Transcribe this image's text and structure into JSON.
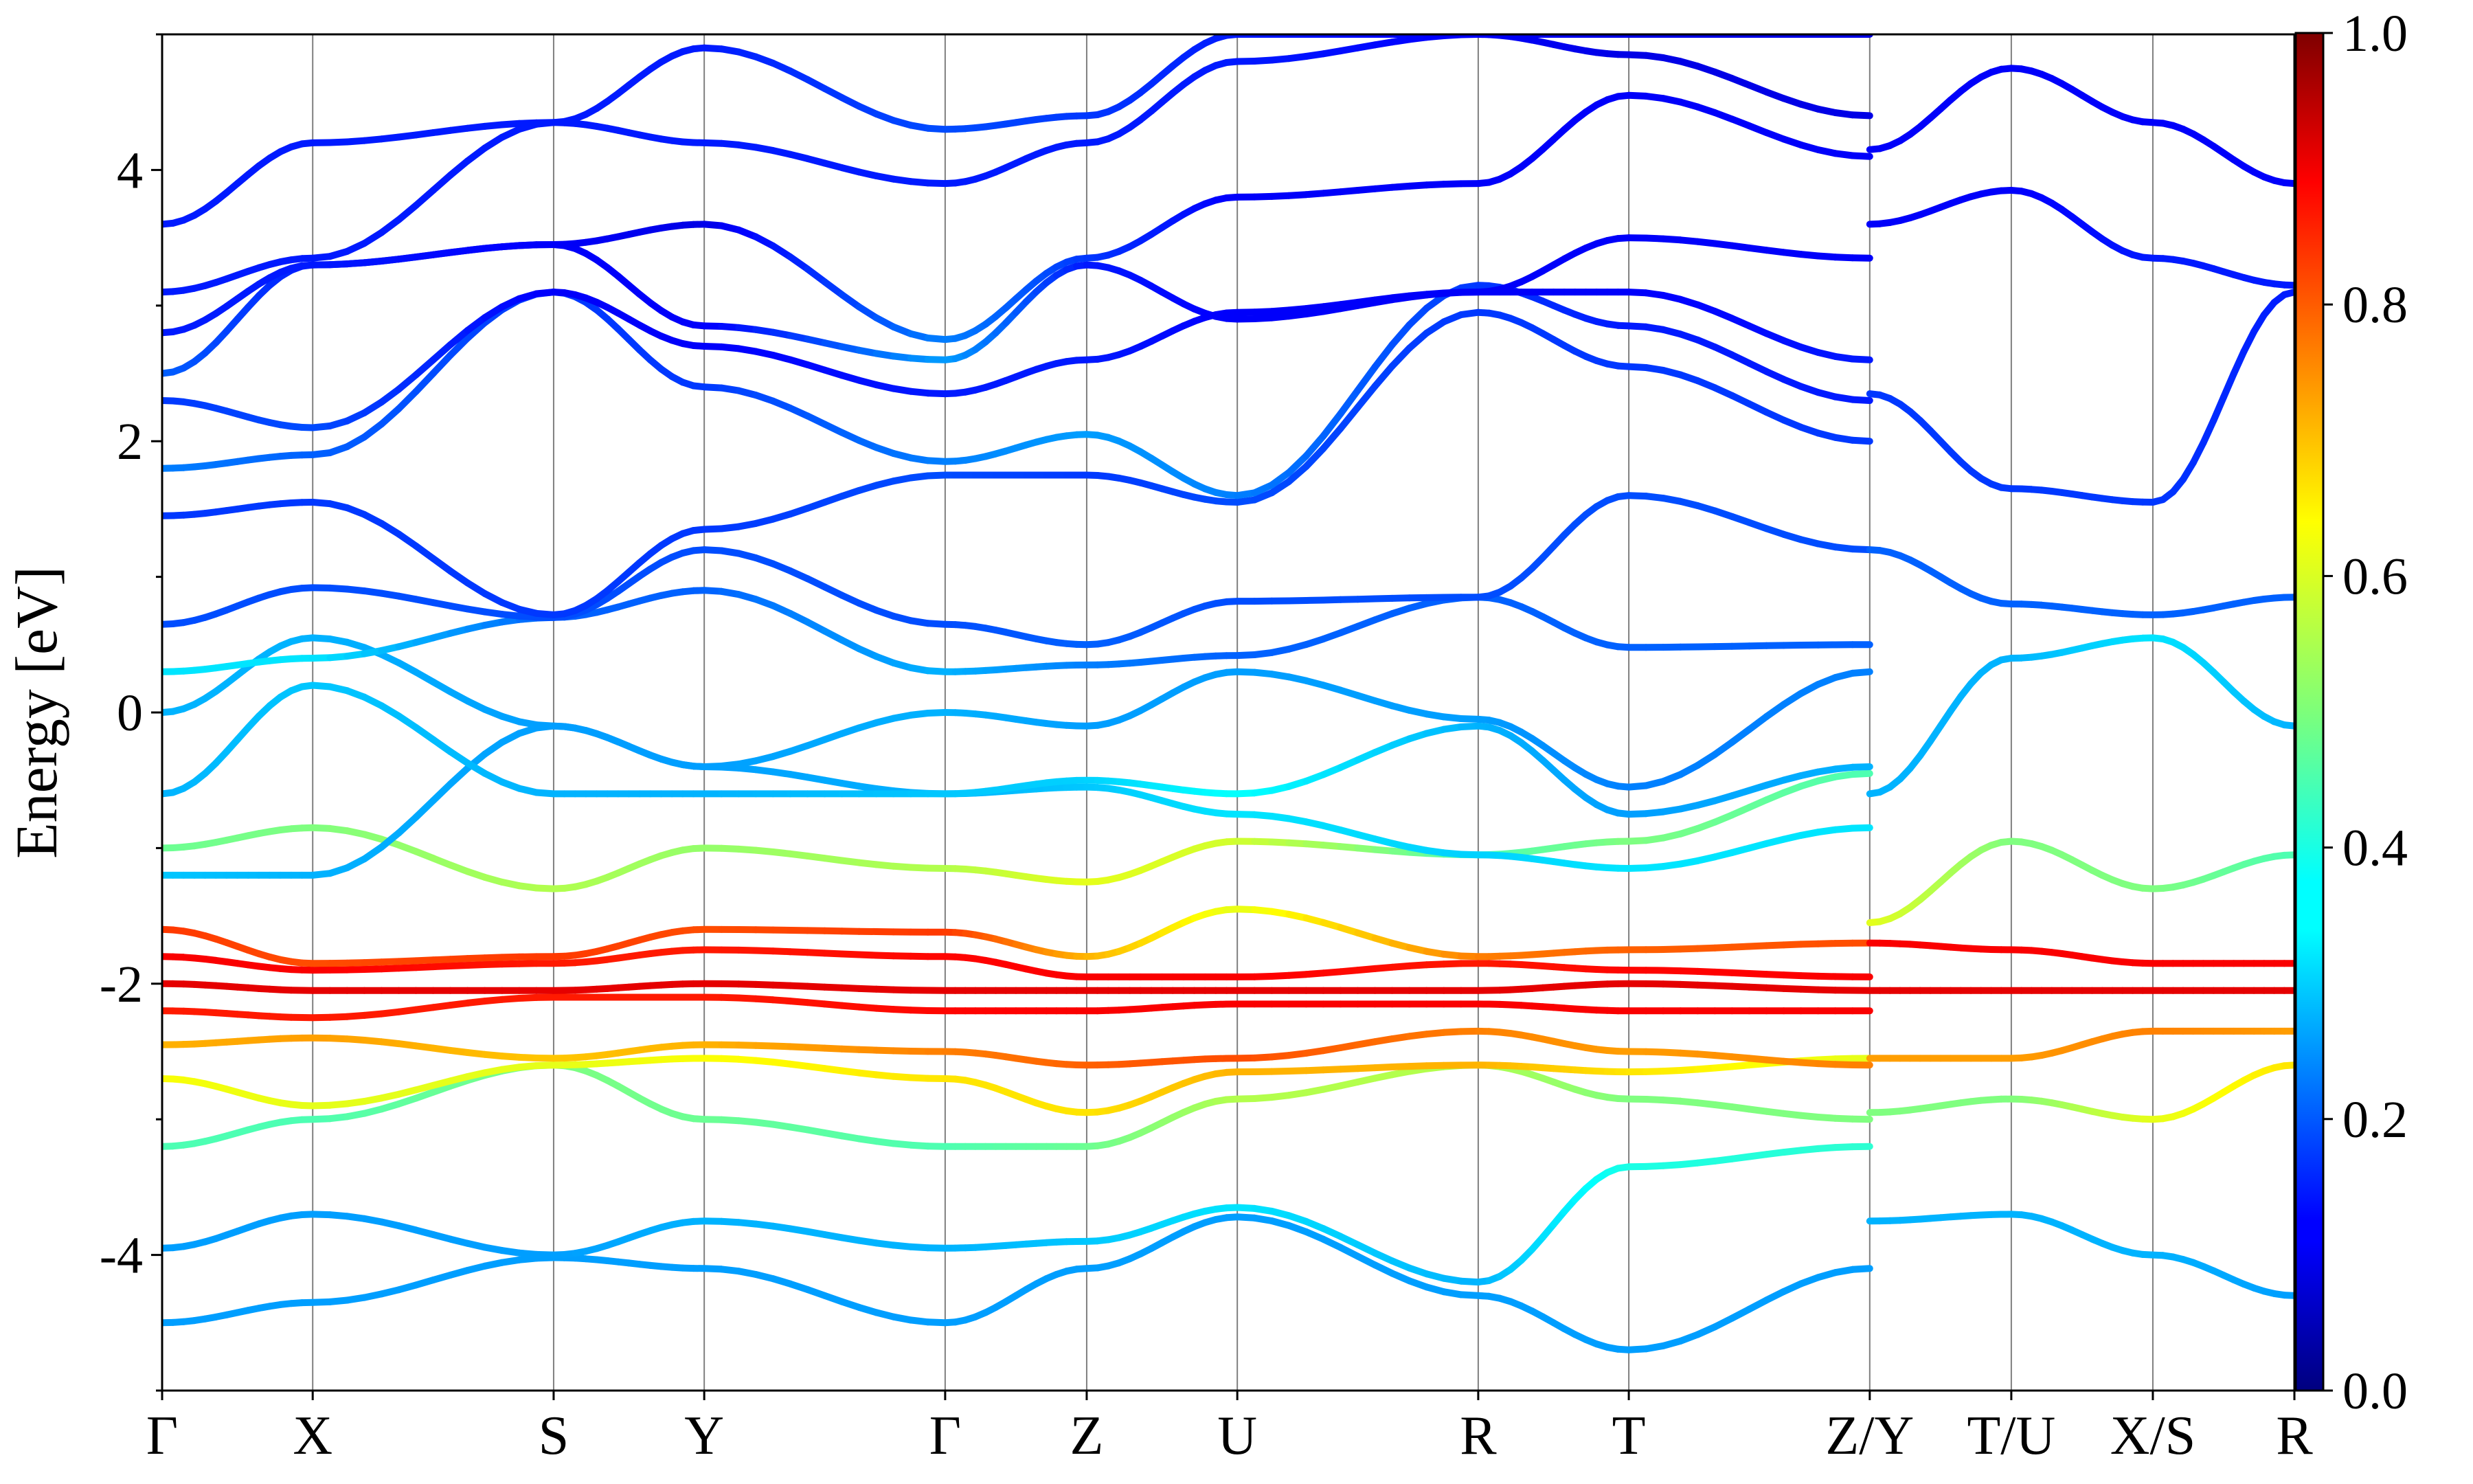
{
  "chart_data": {
    "type": "line",
    "title": "",
    "xlabel": "",
    "ylabel": "Energy [eV]",
    "ylim": [
      -5,
      5
    ],
    "yticks": [
      -4,
      -2,
      0,
      2,
      4
    ],
    "ytick_labels": [
      "-4",
      "-2",
      "0",
      "2",
      "4"
    ],
    "grid": "vertical lines at high-symmetry points",
    "kpath": {
      "labels": [
        "Γ",
        "X",
        "S",
        "Y",
        "Γ",
        "Z",
        "U",
        "R",
        "T",
        "Z/Y",
        "T/U",
        "X/S",
        "R"
      ],
      "positions": [
        0,
        1,
        2.6,
        3.6,
        5.2,
        6.14,
        7.14,
        8.74,
        9.74,
        11.34,
        12.28,
        13.22,
        14.16
      ]
    },
    "colorbar": {
      "colormap": "jet",
      "range": [
        0,
        1
      ],
      "ticks": [
        0.0,
        0.2,
        0.4,
        0.6,
        0.8,
        1.0
      ],
      "tick_labels": [
        "0.0",
        "0.2",
        "0.4",
        "0.6",
        "0.8",
        "1.0"
      ]
    },
    "series": [
      {
        "x": [
          0,
          1,
          2.6,
          3.6,
          5.2,
          6.14,
          7.14,
          8.74,
          9.74,
          11.34
        ],
        "values": [
          -4.5,
          -4.35,
          -4.02,
          -4.1,
          -4.5,
          -4.1,
          -3.72,
          -4.3,
          -4.7,
          -4.1
        ],
        "weights": [
          0.28,
          0.28,
          0.28,
          0.28,
          0.28,
          0.28,
          0.28,
          0.28,
          0.28,
          0.28
        ]
      },
      {
        "x": [
          0,
          1,
          2.6,
          3.6,
          5.2,
          6.14,
          7.14,
          8.74,
          9.74,
          11.34
        ],
        "values": [
          -3.95,
          -3.7,
          -4.0,
          -3.75,
          -3.95,
          -3.9,
          -3.65,
          -4.2,
          -3.35,
          -3.2
        ],
        "weights": [
          0.28,
          0.28,
          0.28,
          0.3,
          0.3,
          0.32,
          0.35,
          0.3,
          0.4,
          0.42
        ]
      },
      {
        "x": [
          0,
          1,
          2.6,
          3.6,
          5.2,
          6.14,
          7.14,
          8.74,
          9.74,
          11.34
        ],
        "values": [
          -3.2,
          -3.0,
          -2.6,
          -3.0,
          -3.2,
          -3.2,
          -2.85,
          -2.6,
          -2.85,
          -3.0
        ],
        "weights": [
          0.45,
          0.45,
          0.5,
          0.48,
          0.45,
          0.48,
          0.55,
          0.55,
          0.5,
          0.5
        ]
      },
      {
        "x": [
          0,
          1,
          2.6,
          3.6,
          5.2,
          6.14,
          7.14,
          8.74,
          9.74,
          11.34
        ],
        "values": [
          -2.7,
          -2.9,
          -2.6,
          -2.55,
          -2.7,
          -2.95,
          -2.65,
          -2.6,
          -2.65,
          -2.55
        ],
        "weights": [
          0.62,
          0.6,
          0.6,
          0.62,
          0.65,
          0.65,
          0.7,
          0.7,
          0.65,
          0.6
        ]
      },
      {
        "x": [
          0,
          1,
          2.6,
          3.6,
          5.2,
          6.14,
          7.14,
          8.74,
          9.74,
          11.34
        ],
        "values": [
          -2.45,
          -2.4,
          -2.55,
          -2.45,
          -2.5,
          -2.6,
          -2.55,
          -2.35,
          -2.5,
          -2.6
        ],
        "weights": [
          0.7,
          0.72,
          0.68,
          0.7,
          0.75,
          0.78,
          0.8,
          0.75,
          0.72,
          0.75
        ]
      },
      {
        "x": [
          0,
          1,
          2.6,
          3.6,
          5.2,
          6.14,
          7.14,
          8.74,
          9.74,
          11.34
        ],
        "values": [
          -2.2,
          -2.25,
          -2.1,
          -2.1,
          -2.2,
          -2.2,
          -2.15,
          -2.15,
          -2.2,
          -2.2
        ],
        "weights": [
          0.85,
          0.85,
          0.85,
          0.85,
          0.87,
          0.88,
          0.88,
          0.88,
          0.88,
          0.88
        ]
      },
      {
        "x": [
          0,
          1,
          2.6,
          3.6,
          5.2,
          6.14,
          7.14,
          8.74,
          9.74,
          11.34
        ],
        "values": [
          -2.0,
          -2.05,
          -2.05,
          -2.0,
          -2.05,
          -2.05,
          -2.05,
          -2.05,
          -2.0,
          -2.05
        ],
        "weights": [
          0.9,
          0.9,
          0.9,
          0.9,
          0.9,
          0.9,
          0.9,
          0.9,
          0.9,
          0.9
        ]
      },
      {
        "x": [
          0,
          1,
          2.6,
          3.6,
          5.2,
          6.14,
          7.14,
          8.74,
          9.74,
          11.34
        ],
        "values": [
          -1.8,
          -1.9,
          -1.85,
          -1.75,
          -1.8,
          -1.95,
          -1.95,
          -1.85,
          -1.9,
          -1.95
        ],
        "weights": [
          0.88,
          0.88,
          0.85,
          0.85,
          0.87,
          0.88,
          0.88,
          0.85,
          0.87,
          0.88
        ]
      },
      {
        "x": [
          0,
          1,
          2.6,
          3.6,
          5.2,
          6.14,
          7.14,
          8.74,
          9.74,
          11.34
        ],
        "values": [
          -1.6,
          -1.85,
          -1.8,
          -1.6,
          -1.62,
          -1.8,
          -1.45,
          -1.8,
          -1.75,
          -1.7
        ],
        "weights": [
          0.82,
          0.8,
          0.82,
          0.8,
          0.82,
          0.7,
          0.6,
          0.75,
          0.78,
          0.8
        ]
      },
      {
        "x": [
          0,
          1,
          2.6,
          3.6,
          5.2,
          6.14,
          7.14,
          8.74,
          9.74,
          11.34
        ],
        "values": [
          -1.0,
          -0.85,
          -1.3,
          -1.0,
          -1.15,
          -1.25,
          -0.95,
          -1.05,
          -0.95,
          -0.45
        ],
        "weights": [
          0.48,
          0.5,
          0.55,
          0.52,
          0.55,
          0.6,
          0.58,
          0.45,
          0.5,
          0.45
        ]
      },
      {
        "x": [
          0,
          1,
          2.6,
          3.6,
          5.2,
          6.14,
          7.14,
          8.74,
          9.74,
          11.34
        ],
        "values": [
          -1.2,
          -1.2,
          -0.1,
          -0.4,
          -0.6,
          -0.55,
          -0.75,
          -1.05,
          -1.15,
          -0.85
        ],
        "weights": [
          0.32,
          0.3,
          0.28,
          0.28,
          0.3,
          0.32,
          0.35,
          0.33,
          0.35,
          0.35
        ]
      },
      {
        "x": [
          0,
          1,
          2.6,
          3.6,
          5.2,
          6.14,
          7.14,
          8.74,
          9.74,
          11.34
        ],
        "values": [
          -0.6,
          0.2,
          -0.6,
          -0.6,
          -0.6,
          -0.5,
          -0.6,
          -0.1,
          -0.75,
          -0.4
        ],
        "weights": [
          0.3,
          0.32,
          0.3,
          0.3,
          0.32,
          0.33,
          0.38,
          0.3,
          0.28,
          0.3
        ]
      },
      {
        "x": [
          0,
          1,
          2.6,
          3.6,
          5.2,
          6.14,
          7.14,
          8.74,
          9.74,
          11.34
        ],
        "values": [
          0.0,
          0.55,
          -0.1,
          -0.4,
          0.0,
          -0.1,
          0.3,
          -0.05,
          -0.55,
          0.3
        ],
        "weights": [
          0.3,
          0.3,
          0.28,
          0.28,
          0.3,
          0.28,
          0.28,
          0.28,
          0.25,
          0.25
        ]
      },
      {
        "x": [
          0,
          1,
          2.6,
          3.6,
          5.2,
          6.14,
          7.14,
          8.74,
          9.74,
          11.34
        ],
        "values": [
          0.3,
          0.4,
          0.7,
          0.9,
          0.3,
          0.35,
          0.42,
          0.85,
          0.48,
          0.5
        ],
        "weights": [
          0.35,
          0.35,
          0.22,
          0.22,
          0.3,
          0.25,
          0.22,
          0.22,
          0.22,
          0.22
        ]
      },
      {
        "x": [
          0,
          1,
          2.6,
          3.6,
          5.2,
          6.14,
          7.14,
          8.74,
          9.74,
          11.34
        ],
        "values": [
          0.65,
          0.92,
          0.7,
          1.2,
          0.65,
          0.5,
          0.82,
          0.85,
          1.6,
          1.2
        ],
        "weights": [
          0.2,
          0.2,
          0.2,
          0.2,
          0.2,
          0.22,
          0.2,
          0.2,
          0.2,
          0.2
        ]
      },
      {
        "x": [
          0,
          1,
          2.6,
          3.6,
          5.2,
          6.14,
          7.14,
          8.74,
          9.74,
          11.34
        ],
        "values": [
          1.45,
          1.55,
          0.72,
          1.35,
          1.75,
          1.75,
          1.55,
          2.95,
          2.55,
          2.0
        ],
        "weights": [
          0.18,
          0.18,
          0.18,
          0.18,
          0.2,
          0.18,
          0.2,
          0.18,
          0.18,
          0.18
        ]
      },
      {
        "x": [
          0,
          1,
          2.6,
          3.6,
          5.2,
          6.14,
          7.14,
          8.74,
          9.74,
          11.34
        ],
        "values": [
          1.8,
          1.9,
          3.1,
          2.4,
          1.85,
          2.05,
          1.6,
          3.15,
          2.85,
          2.3
        ],
        "weights": [
          0.25,
          0.22,
          0.18,
          0.18,
          0.25,
          0.28,
          0.25,
          0.18,
          0.15,
          0.15
        ]
      },
      {
        "x": [
          0,
          1,
          2.6,
          3.6,
          5.2,
          6.14,
          7.14,
          8.74,
          9.74,
          11.34
        ],
        "values": [
          2.3,
          2.1,
          3.1,
          2.7,
          2.35,
          2.6,
          2.95,
          3.1,
          3.1,
          2.6
        ],
        "weights": [
          0.18,
          0.2,
          0.12,
          0.12,
          0.15,
          0.15,
          0.12,
          0.12,
          0.12,
          0.15
        ]
      },
      {
        "x": [
          0,
          1,
          2.6,
          3.6,
          5.2,
          6.14,
          7.14,
          8.74,
          9.74,
          11.34
        ],
        "values": [
          2.5,
          3.3,
          3.45,
          2.85,
          2.6,
          3.3,
          2.9,
          3.1,
          3.5,
          3.35
        ],
        "weights": [
          0.22,
          0.15,
          0.12,
          0.12,
          0.28,
          0.15,
          0.12,
          0.12,
          0.12,
          0.12
        ]
      },
      {
        "x": [
          0,
          1,
          2.6,
          3.6,
          5.2,
          6.14,
          7.14,
          8.74,
          9.74,
          11.34
        ],
        "values": [
          2.8,
          3.3,
          3.45,
          3.6,
          2.75,
          3.35,
          3.8,
          3.9,
          4.55,
          4.1
        ],
        "weights": [
          0.15,
          0.15,
          0.12,
          0.1,
          0.25,
          0.18,
          0.12,
          0.12,
          0.12,
          0.12
        ]
      },
      {
        "x": [
          0,
          1,
          2.6,
          3.6,
          5.2,
          6.14,
          7.14,
          8.74,
          9.74,
          11.34
        ],
        "values": [
          3.1,
          3.35,
          4.35,
          4.2,
          3.9,
          4.2,
          4.8,
          5.0,
          4.85,
          4.4
        ],
        "weights": [
          0.15,
          0.15,
          0.15,
          0.15,
          0.15,
          0.15,
          0.15,
          0.12,
          0.1,
          0.1
        ]
      },
      {
        "x": [
          0,
          1,
          2.6,
          3.6,
          5.2,
          6.14,
          7.14,
          8.74,
          9.74,
          11.34
        ],
        "values": [
          3.6,
          4.2,
          4.35,
          4.9,
          4.3,
          4.4,
          5.0,
          5.0,
          5.0,
          5.0
        ],
        "weights": [
          0.15,
          0.15,
          0.15,
          0.15,
          0.2,
          0.18,
          0.15,
          0.12,
          0.1,
          0.1
        ]
      },
      {
        "x": [
          11.34,
          12.28,
          13.22,
          14.16
        ],
        "values": [
          -3.75,
          -3.7,
          -4.0,
          -4.3
        ],
        "weights": [
          0.3,
          0.3,
          0.3,
          0.28
        ]
      },
      {
        "x": [
          11.34,
          12.28,
          13.22,
          14.16
        ],
        "values": [
          -2.95,
          -2.85,
          -3.0,
          -2.6
        ],
        "weights": [
          0.5,
          0.5,
          0.6,
          0.65
        ]
      },
      {
        "x": [
          11.34,
          12.28,
          13.22,
          14.16
        ],
        "values": [
          -2.55,
          -2.55,
          -2.35,
          -2.35
        ],
        "weights": [
          0.72,
          0.72,
          0.75,
          0.72
        ]
      },
      {
        "x": [
          11.34,
          12.28,
          13.22,
          14.16
        ],
        "values": [
          -2.05,
          -2.05,
          -2.05,
          -2.05
        ],
        "weights": [
          0.9,
          0.9,
          0.9,
          0.9
        ]
      },
      {
        "x": [
          11.34,
          12.28,
          13.22,
          14.16
        ],
        "values": [
          -1.7,
          -1.75,
          -1.85,
          -1.85
        ],
        "weights": [
          0.88,
          0.88,
          0.88,
          0.88
        ]
      },
      {
        "x": [
          11.34,
          12.28,
          13.22,
          14.16
        ],
        "values": [
          -1.55,
          -0.95,
          -1.3,
          -1.05
        ],
        "weights": [
          0.6,
          0.5,
          0.5,
          0.45
        ]
      },
      {
        "x": [
          11.34,
          12.28,
          13.22,
          14.16
        ],
        "values": [
          -0.6,
          0.4,
          0.55,
          -0.1
        ],
        "weights": [
          0.3,
          0.3,
          0.35,
          0.3
        ]
      },
      {
        "x": [
          11.34,
          12.28,
          13.22,
          14.16
        ],
        "values": [
          1.2,
          0.8,
          0.72,
          0.85
        ],
        "weights": [
          0.22,
          0.22,
          0.22,
          0.22
        ]
      },
      {
        "x": [
          11.34,
          12.28,
          13.22,
          14.16
        ],
        "values": [
          2.35,
          1.65,
          1.55,
          3.1
        ],
        "weights": [
          0.18,
          0.18,
          0.18,
          0.15
        ]
      },
      {
        "x": [
          11.34,
          12.28,
          13.22,
          14.16
        ],
        "values": [
          3.6,
          3.85,
          3.35,
          3.15
        ],
        "weights": [
          0.12,
          0.12,
          0.15,
          0.15
        ]
      },
      {
        "x": [
          11.34,
          12.28,
          13.22,
          14.16
        ],
        "values": [
          4.15,
          4.75,
          4.35,
          3.9
        ],
        "weights": [
          0.12,
          0.12,
          0.12,
          0.12
        ]
      }
    ]
  }
}
